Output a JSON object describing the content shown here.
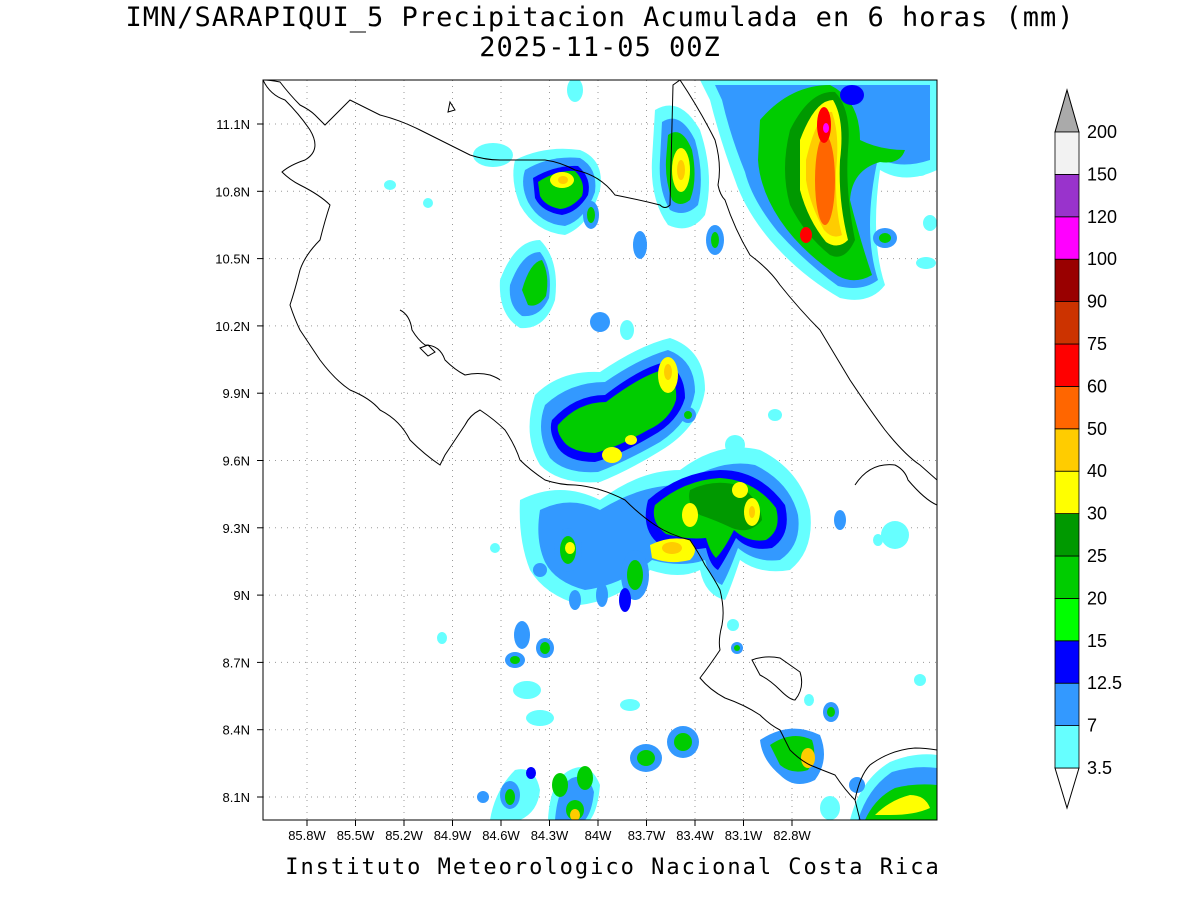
{
  "title": {
    "line1": "IMN/SARAPIQUI_5 Precipitacion Acumulada en 6 horas (mm)",
    "line2": "2025-11-05 00Z"
  },
  "footer": "Instituto Meteorologico Nacional Costa Rica",
  "map": {
    "type": "filled contour precipitation map",
    "grid": "dotted",
    "lon_labels": [
      "85.8W",
      "85.5W",
      "85.2W",
      "84.9W",
      "84.6W",
      "84.3W",
      "84W",
      "83.7W",
      "83.4W",
      "83.1W",
      "82.8W"
    ],
    "lat_labels": [
      "11.1N",
      "10.8N",
      "10.5N",
      "10.2N",
      "9.9N",
      "9.6N",
      "9.3N",
      "9N",
      "8.7N",
      "8.4N",
      "8.1N"
    ]
  },
  "colorbar": {
    "unit": "mm",
    "levels": [
      {
        "label": "3.5",
        "color": "#66ffff"
      },
      {
        "label": "7",
        "color": "#3399ff"
      },
      {
        "label": "12.5",
        "color": "#0000ff"
      },
      {
        "label": "15",
        "color": "#00ff00"
      },
      {
        "label": "20",
        "color": "#00cc00"
      },
      {
        "label": "25",
        "color": "#009900"
      },
      {
        "label": "30",
        "color": "#ffff00"
      },
      {
        "label": "40",
        "color": "#ffcc00"
      },
      {
        "label": "50",
        "color": "#ff6600"
      },
      {
        "label": "60",
        "color": "#ff0000"
      },
      {
        "label": "75",
        "color": "#cc3300"
      },
      {
        "label": "90",
        "color": "#990000"
      },
      {
        "label": "100",
        "color": "#ff00ff"
      },
      {
        "label": "120",
        "color": "#9933cc"
      },
      {
        "label": "150",
        "color": "#f2f2f2"
      },
      {
        "label": "200",
        "color": "#aaaaaa"
      }
    ]
  }
}
